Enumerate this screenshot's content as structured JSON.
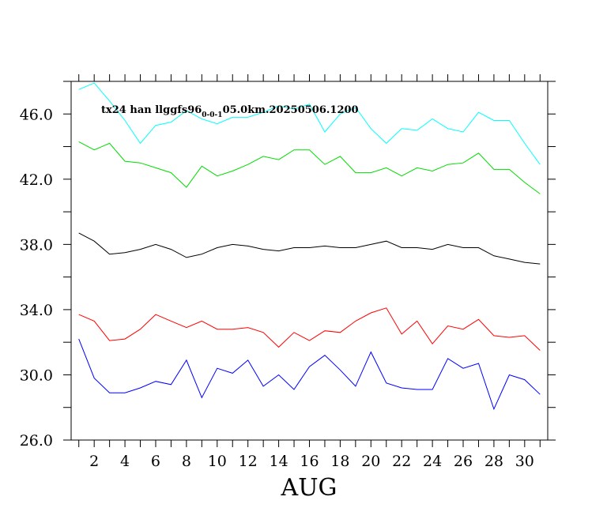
{
  "chart_data": {
    "type": "line",
    "annotation": {
      "prefix": "tx24 han llggfs96",
      "subscript": "0-0-1",
      "suffix": "05.0km.20250506.1200"
    },
    "xlabel": "AUG",
    "ylabel": "",
    "xlim": [
      0.5,
      31.5
    ],
    "ylim": [
      26.0,
      48.0
    ],
    "x_ticks": [
      2,
      4,
      6,
      8,
      10,
      12,
      14,
      16,
      18,
      20,
      22,
      24,
      26,
      28,
      30
    ],
    "y_ticks": [
      "26.0",
      "30.0",
      "34.0",
      "38.0",
      "42.0",
      "46.0"
    ],
    "x": [
      1,
      2,
      3,
      4,
      5,
      6,
      7,
      8,
      9,
      10,
      11,
      12,
      13,
      14,
      15,
      16,
      17,
      18,
      19,
      20,
      21,
      22,
      23,
      24,
      25,
      26,
      27,
      28,
      29,
      30,
      31
    ],
    "series": [
      {
        "color": "#00ffff",
        "values": [
          47.5,
          47.9,
          46.8,
          45.6,
          44.2,
          45.3,
          45.5,
          46.2,
          45.7,
          45.4,
          45.8,
          45.8,
          46.1,
          46.5,
          46.3,
          46.6,
          44.9,
          46.0,
          46.4,
          45.1,
          44.2,
          45.1,
          45.0,
          45.7,
          45.1,
          44.9,
          46.1,
          45.6,
          45.6,
          44.2,
          42.9
        ]
      },
      {
        "color": "#00dd00",
        "values": [
          44.3,
          43.8,
          44.2,
          43.1,
          43.0,
          42.7,
          42.4,
          41.5,
          42.8,
          42.2,
          42.5,
          42.9,
          43.4,
          43.2,
          43.8,
          43.8,
          42.9,
          43.4,
          42.4,
          42.4,
          42.7,
          42.2,
          42.7,
          42.5,
          42.9,
          43.0,
          43.6,
          42.6,
          42.6,
          41.8,
          41.1
        ]
      },
      {
        "color": "#000000",
        "values": [
          38.7,
          38.2,
          37.4,
          37.5,
          37.7,
          38.0,
          37.7,
          37.2,
          37.4,
          37.8,
          38.0,
          37.9,
          37.7,
          37.6,
          37.8,
          37.8,
          37.9,
          37.8,
          37.8,
          38.0,
          38.2,
          37.8,
          37.8,
          37.7,
          38.0,
          37.8,
          37.8,
          37.3,
          37.1,
          36.9,
          36.8
        ]
      },
      {
        "color": "#ff0000",
        "values": [
          33.7,
          33.3,
          32.1,
          32.2,
          32.8,
          33.7,
          33.3,
          32.9,
          33.3,
          32.8,
          32.8,
          32.9,
          32.6,
          31.7,
          32.6,
          32.1,
          32.7,
          32.6,
          33.3,
          33.8,
          34.1,
          32.5,
          33.3,
          31.9,
          33.0,
          32.8,
          33.4,
          32.4,
          32.3,
          32.4,
          31.5
        ]
      },
      {
        "color": "#0000ff",
        "values": [
          32.2,
          29.8,
          28.9,
          28.9,
          29.2,
          29.6,
          29.4,
          30.9,
          28.6,
          30.4,
          30.1,
          30.9,
          29.3,
          30.0,
          29.1,
          30.5,
          31.2,
          30.3,
          29.3,
          31.4,
          29.5,
          29.2,
          29.1,
          29.1,
          31.0,
          30.4,
          30.7,
          27.9,
          30.0,
          29.7,
          28.8
        ]
      }
    ]
  }
}
